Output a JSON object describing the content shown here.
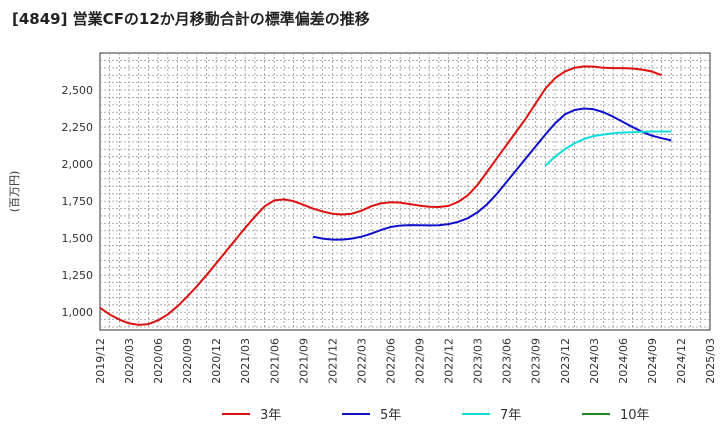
{
  "chart_data": {
    "type": "line",
    "title": "[4849]  営業CFの12か月移動合計の標準偏差の推移",
    "ylabel": "(百万円)",
    "xlabel": "",
    "ylim": [
      880,
      2750
    ],
    "yticks": [
      1000,
      1250,
      1500,
      1750,
      2000,
      2250,
      2500
    ],
    "ytick_labels": [
      "1,000",
      "1,250",
      "1,500",
      "1,750",
      "2,000",
      "2,250",
      "2,500"
    ],
    "x_start": "2019-12",
    "x_end": "2025-03",
    "xtick_labels": [
      "2019/12",
      "2020/03",
      "2020/06",
      "2020/09",
      "2020/12",
      "2021/03",
      "2021/06",
      "2021/09",
      "2021/12",
      "2022/03",
      "2022/06",
      "2022/09",
      "2022/12",
      "2023/03",
      "2023/06",
      "2023/09",
      "2023/12",
      "2024/03",
      "2024/06",
      "2024/09",
      "2024/12",
      "2025/03"
    ],
    "grid": true,
    "legend_position": "bottom",
    "series": [
      {
        "name": "3年",
        "color": "#dd1111",
        "points": [
          [
            "2019-12",
            1030
          ],
          [
            "2020-01",
            985
          ],
          [
            "2020-02",
            950
          ],
          [
            "2020-03",
            925
          ],
          [
            "2020-04",
            915
          ],
          [
            "2020-05",
            920
          ],
          [
            "2020-06",
            945
          ],
          [
            "2020-07",
            985
          ],
          [
            "2020-08",
            1040
          ],
          [
            "2020-09",
            1105
          ],
          [
            "2020-10",
            1175
          ],
          [
            "2020-11",
            1250
          ],
          [
            "2020-12",
            1330
          ],
          [
            "2021-01",
            1410
          ],
          [
            "2021-02",
            1490
          ],
          [
            "2021-03",
            1570
          ],
          [
            "2021-04",
            1645
          ],
          [
            "2021-05",
            1715
          ],
          [
            "2021-06",
            1755
          ],
          [
            "2021-07",
            1762
          ],
          [
            "2021-08",
            1750
          ],
          [
            "2021-09",
            1725
          ],
          [
            "2021-10",
            1700
          ],
          [
            "2021-11",
            1680
          ],
          [
            "2021-12",
            1665
          ],
          [
            "2022-01",
            1660
          ],
          [
            "2022-02",
            1665
          ],
          [
            "2022-03",
            1685
          ],
          [
            "2022-04",
            1715
          ],
          [
            "2022-05",
            1735
          ],
          [
            "2022-06",
            1742
          ],
          [
            "2022-07",
            1740
          ],
          [
            "2022-08",
            1730
          ],
          [
            "2022-09",
            1720
          ],
          [
            "2022-10",
            1712
          ],
          [
            "2022-11",
            1710
          ],
          [
            "2022-12",
            1718
          ],
          [
            "2023-01",
            1745
          ],
          [
            "2023-02",
            1790
          ],
          [
            "2023-03",
            1860
          ],
          [
            "2023-04",
            1950
          ],
          [
            "2023-05",
            2040
          ],
          [
            "2023-06",
            2130
          ],
          [
            "2023-07",
            2220
          ],
          [
            "2023-08",
            2310
          ],
          [
            "2023-09",
            2410
          ],
          [
            "2023-10",
            2510
          ],
          [
            "2023-11",
            2580
          ],
          [
            "2023-12",
            2625
          ],
          [
            "2024-01",
            2650
          ],
          [
            "2024-02",
            2660
          ],
          [
            "2024-03",
            2658
          ],
          [
            "2024-04",
            2650
          ],
          [
            "2024-05",
            2648
          ],
          [
            "2024-06",
            2648
          ],
          [
            "2024-07",
            2645
          ],
          [
            "2024-08",
            2638
          ],
          [
            "2024-09",
            2625
          ],
          [
            "2024-10",
            2600
          ]
        ]
      },
      {
        "name": "5年",
        "color": "#1111cc",
        "points": [
          [
            "2021-10",
            1510
          ],
          [
            "2021-11",
            1497
          ],
          [
            "2021-12",
            1490
          ],
          [
            "2022-01",
            1490
          ],
          [
            "2022-02",
            1497
          ],
          [
            "2022-03",
            1510
          ],
          [
            "2022-04",
            1530
          ],
          [
            "2022-05",
            1555
          ],
          [
            "2022-06",
            1575
          ],
          [
            "2022-07",
            1585
          ],
          [
            "2022-08",
            1588
          ],
          [
            "2022-09",
            1587
          ],
          [
            "2022-10",
            1586
          ],
          [
            "2022-11",
            1587
          ],
          [
            "2022-12",
            1595
          ],
          [
            "2023-01",
            1610
          ],
          [
            "2023-02",
            1635
          ],
          [
            "2023-03",
            1675
          ],
          [
            "2023-04",
            1730
          ],
          [
            "2023-05",
            1800
          ],
          [
            "2023-06",
            1880
          ],
          [
            "2023-07",
            1960
          ],
          [
            "2023-08",
            2040
          ],
          [
            "2023-09",
            2120
          ],
          [
            "2023-10",
            2200
          ],
          [
            "2023-11",
            2275
          ],
          [
            "2023-12",
            2335
          ],
          [
            "2024-01",
            2365
          ],
          [
            "2024-02",
            2375
          ],
          [
            "2024-03",
            2370
          ],
          [
            "2024-04",
            2350
          ],
          [
            "2024-05",
            2320
          ],
          [
            "2024-06",
            2285
          ],
          [
            "2024-07",
            2250
          ],
          [
            "2024-08",
            2218
          ],
          [
            "2024-09",
            2192
          ],
          [
            "2024-10",
            2175
          ],
          [
            "2024-11",
            2160
          ]
        ]
      },
      {
        "name": "7年",
        "color": "#11dddd",
        "points": [
          [
            "2023-10",
            1990
          ],
          [
            "2023-11",
            2050
          ],
          [
            "2023-12",
            2100
          ],
          [
            "2024-01",
            2140
          ],
          [
            "2024-02",
            2170
          ],
          [
            "2024-03",
            2190
          ],
          [
            "2024-04",
            2200
          ],
          [
            "2024-05",
            2208
          ],
          [
            "2024-06",
            2213
          ],
          [
            "2024-07",
            2215
          ],
          [
            "2024-08",
            2218
          ],
          [
            "2024-09",
            2220
          ],
          [
            "2024-10",
            2220
          ],
          [
            "2024-11",
            2220
          ]
        ]
      },
      {
        "name": "10年",
        "color": "#228822",
        "points": []
      }
    ]
  }
}
